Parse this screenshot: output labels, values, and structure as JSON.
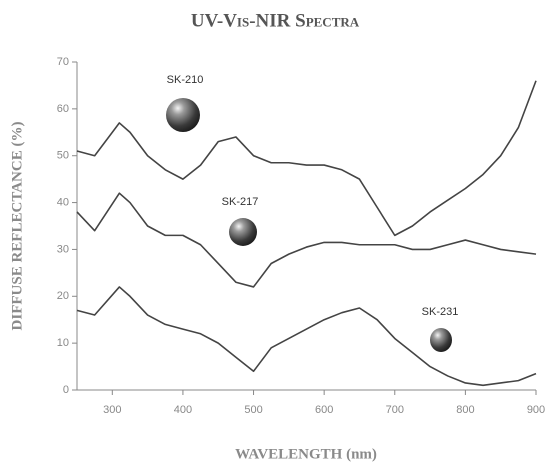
{
  "chart_data": {
    "type": "line",
    "title": "UV-Vis-NIR Spectra",
    "x_label": "WAVELENGTH (nm)",
    "y_label": "DIFFUSE REFLECTANCE (%)",
    "x": [
      250,
      275,
      310,
      325,
      350,
      375,
      400,
      425,
      450,
      475,
      500,
      525,
      550,
      575,
      600,
      625,
      650,
      675,
      700,
      725,
      750,
      775,
      800,
      825,
      850,
      875,
      900
    ],
    "series": [
      {
        "name": "SK-210",
        "color": "#444444",
        "values": [
          51,
          50,
          57,
          55,
          50,
          47,
          45,
          48,
          53,
          54,
          50,
          48.5,
          48.5,
          48,
          48,
          47,
          45,
          39,
          33,
          35,
          38,
          40.5,
          43,
          46,
          50,
          56,
          66
        ]
      },
      {
        "name": "SK-217",
        "color": "#444444",
        "values": [
          38,
          34,
          42,
          40,
          35,
          33,
          33,
          31,
          27,
          23,
          22,
          27,
          29,
          30.5,
          31.5,
          31.5,
          31,
          31,
          31,
          30,
          30,
          31,
          32,
          31,
          30,
          29.5,
          29
        ]
      },
      {
        "name": "SK-231",
        "color": "#444444",
        "values": [
          17,
          16,
          22,
          20,
          16,
          14,
          13,
          12,
          10,
          7,
          4,
          9,
          11,
          13,
          15,
          16.5,
          17.5,
          15,
          11,
          8,
          5,
          3,
          1.5,
          1,
          1.5,
          2,
          3.5
        ]
      }
    ],
    "xlim": [
      250,
      900
    ],
    "xticks": [
      300,
      400,
      500,
      600,
      700,
      800,
      900
    ],
    "ylim": [
      0,
      70
    ],
    "yticks": [
      0,
      10,
      20,
      30,
      40,
      50,
      60,
      70
    ],
    "grid": false
  }
}
